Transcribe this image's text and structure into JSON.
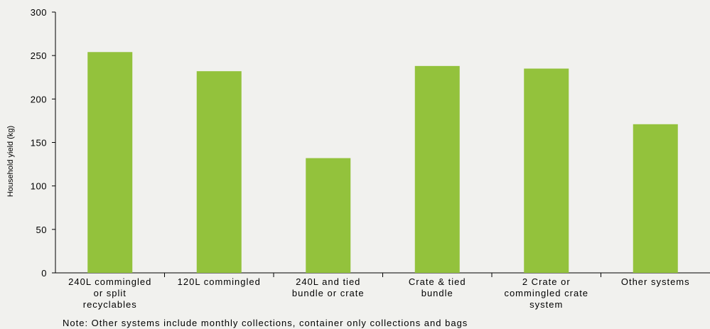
{
  "chart_data": {
    "type": "bar",
    "title": "",
    "xlabel": "",
    "ylabel": "Household yield (kg)",
    "ylim": [
      0,
      300
    ],
    "yticks": [
      0,
      50,
      100,
      150,
      200,
      250,
      300
    ],
    "grid": false,
    "categories": [
      [
        "240L commingled",
        "or split",
        "recyclables"
      ],
      [
        "120L commingled"
      ],
      [
        "240L and tied",
        "bundle or crate"
      ],
      [
        "Crate & tied",
        "bundle"
      ],
      [
        "2 Crate or",
        "commingled crate",
        "system"
      ],
      [
        "Other systems"
      ]
    ],
    "values": [
      254,
      232,
      132,
      238,
      235,
      171
    ],
    "bar_color": "#93c23c",
    "note": "Note: Other systems include monthly collections, container only collections and bags"
  }
}
